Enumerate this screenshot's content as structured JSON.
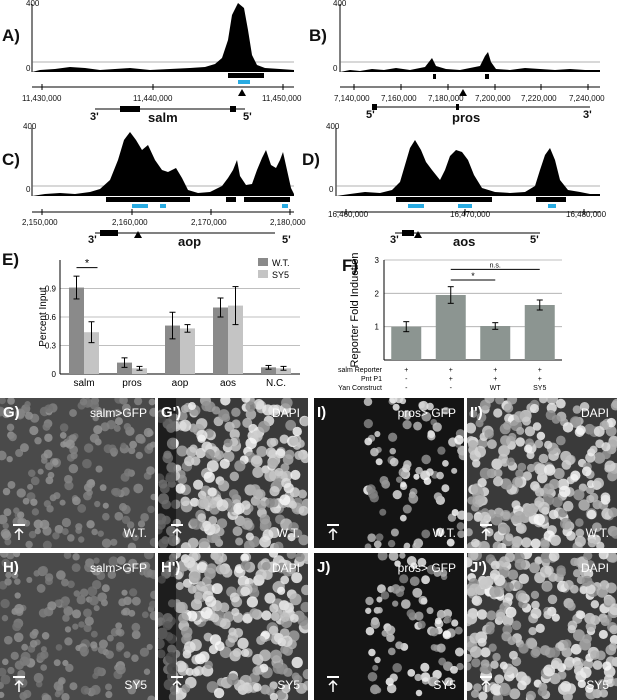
{
  "panels": {
    "A": {
      "label": "A)",
      "ymax": "400",
      "ymin": "0",
      "ticks": [
        "11,430,000",
        "11,440,000",
        "11,450,000"
      ],
      "gene": "salm",
      "left_prime": "3'",
      "right_prime": "5'"
    },
    "B": {
      "label": "B)",
      "ymax": "400",
      "ymin": "0",
      "ticks": [
        "7,140,000",
        "7,160,000",
        "7,180,000",
        "7,200,000",
        "7,220,000",
        "7,240,000"
      ],
      "gene": "pros",
      "left_prime": "5'",
      "right_prime": "3'"
    },
    "C": {
      "label": "C)",
      "ymax": "400",
      "ymin": "0",
      "ticks": [
        "2,150,000",
        "2,160,000",
        "2,170,000",
        "2,180,000"
      ],
      "gene": "aop",
      "left_prime": "3'",
      "right_prime": "5'"
    },
    "D": {
      "label": "D)",
      "ymax": "400",
      "ymin": "0",
      "ticks": [
        "16,460,000",
        "16,470,000",
        "16,480,000"
      ],
      "gene": "aos",
      "left_prime": "3'",
      "right_prime": "5'"
    }
  },
  "chart_data": [
    {
      "type": "bar",
      "panel": "E)",
      "ylabel": "Percent Input",
      "categories": [
        "salm",
        "pros",
        "aop",
        "aos",
        "N.C."
      ],
      "yticks": [
        "0",
        "0.3",
        "0.6",
        "0.9"
      ],
      "ylim": [
        0,
        1.2
      ],
      "legend": [
        "W.T.",
        "SY5"
      ],
      "series": [
        {
          "name": "W.T.",
          "values": [
            0.91,
            0.12,
            0.51,
            0.7,
            0.07
          ],
          "errors": [
            0.12,
            0.05,
            0.14,
            0.1,
            0.02
          ],
          "color": "#8a8a8a"
        },
        {
          "name": "SY5",
          "values": [
            0.44,
            0.06,
            0.48,
            0.72,
            0.06
          ],
          "errors": [
            0.11,
            0.02,
            0.04,
            0.2,
            0.02
          ],
          "color": "#c4c4c4"
        }
      ],
      "significance": "*"
    },
    {
      "type": "bar",
      "panel": "F)",
      "ylabel": "Reporter Fold Induction",
      "yticks": [
        "1",
        "2",
        "3"
      ],
      "ylim": [
        0,
        3
      ],
      "values": [
        1.0,
        1.95,
        1.02,
        1.65
      ],
      "errors": [
        0.15,
        0.25,
        0.1,
        0.15
      ],
      "color": "#8c9591",
      "rows": [
        {
          "name": "salm Reporter",
          "cells": [
            "+",
            "+",
            "+",
            "+"
          ]
        },
        {
          "name": "Pnt P1",
          "cells": [
            "-",
            "+",
            "+",
            "+"
          ]
        },
        {
          "name": "Yan Construct",
          "cells": [
            "-",
            "-",
            "WT",
            "SY5"
          ]
        }
      ],
      "significance": [
        "*",
        "n.s."
      ]
    }
  ],
  "images": [
    {
      "id": "G",
      "label": "G)",
      "caption": "salm>GFP",
      "genotype": "W.T."
    },
    {
      "id": "G2",
      "label": "G')",
      "caption": "DAPI",
      "genotype": "W.T."
    },
    {
      "id": "I",
      "label": "I)",
      "caption": "pros> GFP",
      "genotype": "W.T."
    },
    {
      "id": "I2",
      "label": "I')",
      "caption": "DAPI",
      "genotype": "W.T."
    },
    {
      "id": "H",
      "label": "H)",
      "caption": "salm>GFP",
      "genotype": "SY5"
    },
    {
      "id": "H2",
      "label": "H')",
      "caption": "DAPI",
      "genotype": "SY5"
    },
    {
      "id": "J",
      "label": "J)",
      "caption": "pros> GFP",
      "genotype": "SY5"
    },
    {
      "id": "J2",
      "label": "J')",
      "caption": "DAPI",
      "genotype": "SY5"
    }
  ]
}
